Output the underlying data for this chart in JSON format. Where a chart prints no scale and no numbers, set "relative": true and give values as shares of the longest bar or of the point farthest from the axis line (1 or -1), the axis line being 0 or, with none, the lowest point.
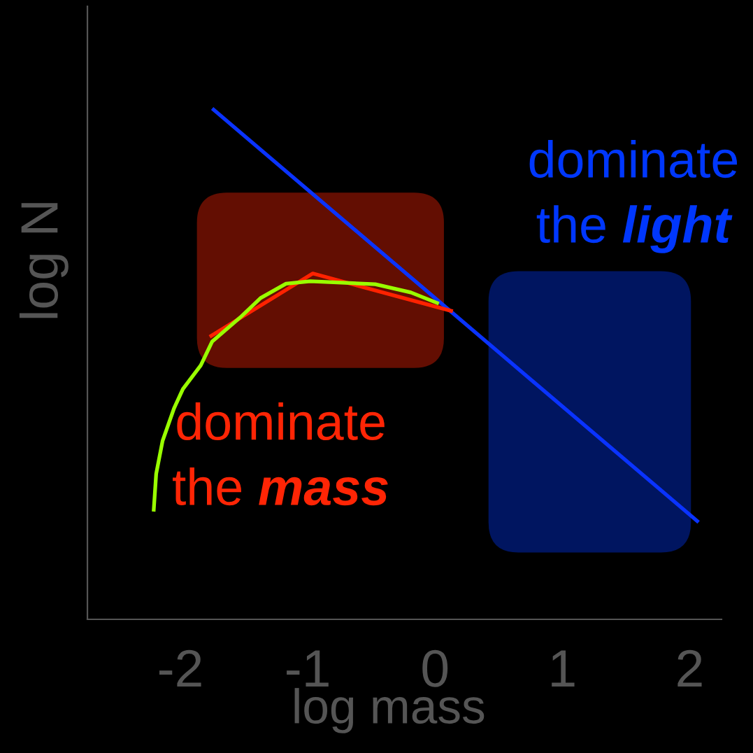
{
  "chart_data": {
    "type": "line",
    "xlabel": "log mass",
    "ylabel": "log N",
    "relative": true,
    "xlim": [
      -2.73,
      2.25
    ],
    "xticks": [
      -2,
      -1,
      0,
      1,
      2
    ],
    "tick_labels": "x",
    "series": [
      {
        "color": "#0a33ff",
        "x": [
          -1.75,
          2.07
        ],
        "values": [
          1.0,
          0.19
        ]
      },
      {
        "color": "#ff2200",
        "x": [
          -1.77,
          -0.96,
          0.14
        ],
        "values": [
          0.553,
          0.677,
          0.603
        ]
      },
      {
        "color": "#99ff00",
        "x": [
          -2.21,
          -2.19,
          -2.14,
          -2.05,
          -1.98,
          -1.84,
          -1.75,
          -1.53,
          -1.37,
          -1.17,
          -0.98,
          -0.47,
          -0.19,
          0.03
        ],
        "values": [
          0.211,
          0.285,
          0.349,
          0.413,
          0.451,
          0.497,
          0.544,
          0.591,
          0.629,
          0.657,
          0.662,
          0.656,
          0.64,
          0.618
        ]
      }
    ],
    "bands": [
      {
        "axis": "x",
        "from": 0.42,
        "to": 2.01,
        "label": "dominate the light",
        "color": "#001560"
      },
      {
        "axis": "x",
        "from": -1.87,
        "to": 0.07,
        "label": "dominate the mass",
        "color": "#630e02"
      }
    ]
  }
}
